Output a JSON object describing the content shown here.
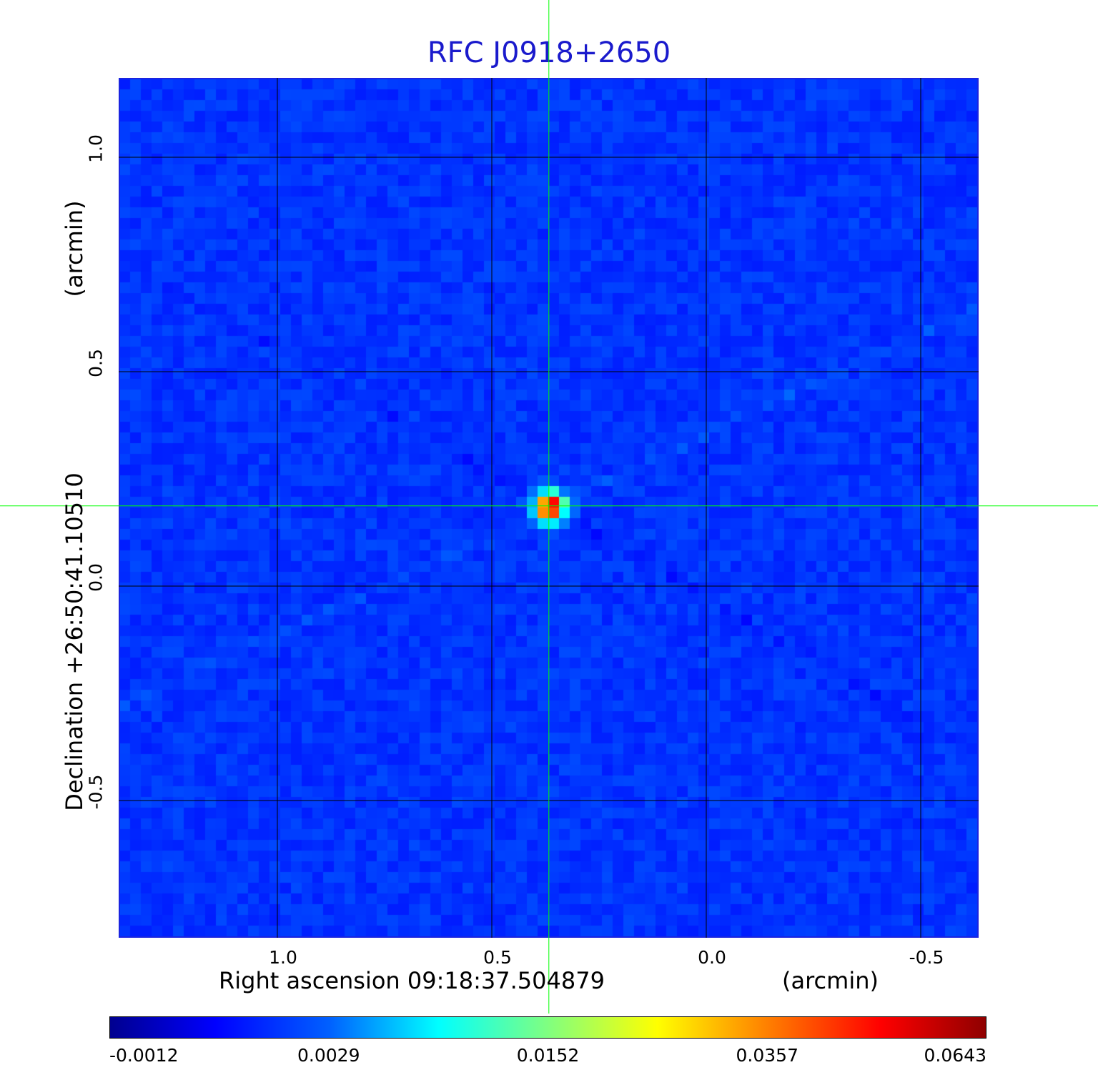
{
  "title": "RFC J0918+2650",
  "colors": {
    "title": "#1a1acc",
    "background_map": "#1f47f2",
    "grid": "#000000",
    "crosshair": "#00ff00",
    "frame": "#1a24e0"
  },
  "chart_data": {
    "type": "heatmap",
    "title": "RFC J0918+2650",
    "xlabel": "Right ascension  09:18:37.504879",
    "xunit": "(arcmin)",
    "ylabel": "Declination  +26:50:41.10510",
    "yunit": "(arcmin)",
    "x_ticks": [
      1.0,
      0.5,
      0.0,
      -0.5
    ],
    "x_tick_labels": [
      "1.0",
      "0.5",
      "0.0",
      "-0.5"
    ],
    "y_ticks": [
      1.0,
      0.5,
      0.0,
      -0.5
    ],
    "y_tick_labels": [
      "1.0",
      "0.5",
      "0.0",
      "-0.5"
    ],
    "xlim": [
      1.37,
      -0.635
    ],
    "ylim": [
      -0.82,
      1.185
    ],
    "grid": true,
    "crosshair": {
      "x": 0.367,
      "y": 0.187
    },
    "source_peak": {
      "x": 0.367,
      "y": 0.187,
      "value": 0.0643
    },
    "colormap": "jet",
    "colorbar_ticks": [
      "-0.0012",
      "0.0029",
      "0.0152",
      "0.0357",
      "0.0643"
    ],
    "colorbar_range": [
      -0.0012,
      0.0643
    ]
  }
}
